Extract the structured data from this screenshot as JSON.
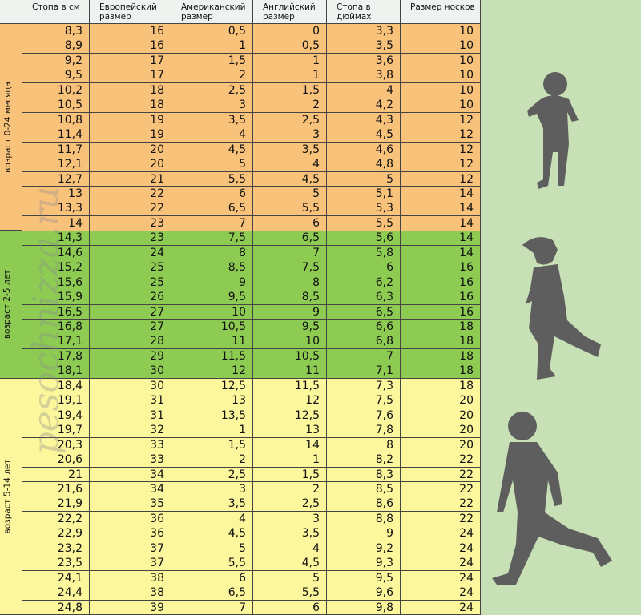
{
  "watermark": "pesochnizza.ru",
  "table": {
    "headers": [
      "Стопа в см",
      "Европейский размер",
      "Американский размер",
      "Английский размер",
      "Стопа в дюймах",
      "Размер носков"
    ],
    "groups": [
      {
        "label": "возраст 0-24 месяца",
        "rows": [
          [
            "8,3",
            "16",
            "0,5",
            "0",
            "3,3",
            "10"
          ],
          [
            "8,9",
            "16",
            "1",
            "0,5",
            "3,5",
            "10"
          ],
          [
            "9,2",
            "17",
            "1,5",
            "1",
            "3,6",
            "10"
          ],
          [
            "9,5",
            "17",
            "2",
            "1",
            "3,8",
            "10"
          ],
          [
            "10,2",
            "18",
            "2,5",
            "1,5",
            "4",
            "10"
          ],
          [
            "10,5",
            "18",
            "3",
            "2",
            "4,2",
            "10"
          ],
          [
            "10,8",
            "19",
            "3,5",
            "2,5",
            "4,3",
            "12"
          ],
          [
            "11,4",
            "19",
            "4",
            "3",
            "4,5",
            "12"
          ],
          [
            "11,7",
            "20",
            "4,5",
            "3,5",
            "4,6",
            "12"
          ],
          [
            "12,1",
            "20",
            "5",
            "4",
            "4,8",
            "12"
          ],
          [
            "12,7",
            "21",
            "5,5",
            "4,5",
            "5",
            "12"
          ],
          [
            "13",
            "22",
            "6",
            "5",
            "5,1",
            "14"
          ],
          [
            "13,3",
            "22",
            "6,5",
            "5,5",
            "5,3",
            "14"
          ],
          [
            "14",
            "23",
            "7",
            "6",
            "5,5",
            "14"
          ]
        ]
      },
      {
        "label": "возраст 2-5 лет",
        "rows": [
          [
            "14,3",
            "23",
            "7,5",
            "6,5",
            "5,6",
            "14"
          ],
          [
            "14,6",
            "24",
            "8",
            "7",
            "5,8",
            "14"
          ],
          [
            "15,2",
            "25",
            "8,5",
            "7,5",
            "6",
            "16"
          ],
          [
            "15,6",
            "25",
            "9",
            "8",
            "6,2",
            "16"
          ],
          [
            "15,9",
            "26",
            "9,5",
            "8,5",
            "6,3",
            "16"
          ],
          [
            "16,5",
            "27",
            "10",
            "9",
            "6,5",
            "16"
          ],
          [
            "16,8",
            "27",
            "10,5",
            "9,5",
            "6,6",
            "18"
          ],
          [
            "17,1",
            "28",
            "11",
            "10",
            "6,8",
            "18"
          ],
          [
            "17,8",
            "29",
            "11,5",
            "10,5",
            "7",
            "18"
          ],
          [
            "18,1",
            "30",
            "12",
            "11",
            "7,1",
            "18"
          ]
        ]
      },
      {
        "label": "возраст 5-14 лет",
        "rows": [
          [
            "18,4",
            "30",
            "12,5",
            "11,5",
            "7,3",
            "18"
          ],
          [
            "19,1",
            "31",
            "13",
            "12",
            "7,5",
            "20"
          ],
          [
            "19,4",
            "31",
            "13,5",
            "12,5",
            "7,6",
            "20"
          ],
          [
            "19,7",
            "32",
            "1",
            "13",
            "7,8",
            "20"
          ],
          [
            "20,3",
            "33",
            "1,5",
            "14",
            "8",
            "20"
          ],
          [
            "20,6",
            "33",
            "2",
            "1",
            "8,2",
            "22"
          ],
          [
            "21",
            "34",
            "2,5",
            "1,5",
            "8,3",
            "22"
          ],
          [
            "21,6",
            "34",
            "3",
            "2",
            "8,5",
            "22"
          ],
          [
            "21,9",
            "35",
            "3,5",
            "2,5",
            "8,6",
            "22"
          ],
          [
            "22,2",
            "36",
            "4",
            "3",
            "8,8",
            "22"
          ],
          [
            "22,9",
            "36",
            "4,5",
            "3,5",
            "9",
            "24"
          ],
          [
            "23,2",
            "37",
            "5",
            "4",
            "9,2",
            "24"
          ],
          [
            "23,5",
            "37",
            "5,5",
            "4,5",
            "9,3",
            "24"
          ],
          [
            "24,1",
            "38",
            "6",
            "5",
            "9,5",
            "24"
          ],
          [
            "24,4",
            "38",
            "6,5",
            "5,5",
            "9,6",
            "24"
          ],
          [
            "24,8",
            "39",
            "7",
            "6",
            "9,8",
            "24"
          ]
        ]
      }
    ]
  }
}
